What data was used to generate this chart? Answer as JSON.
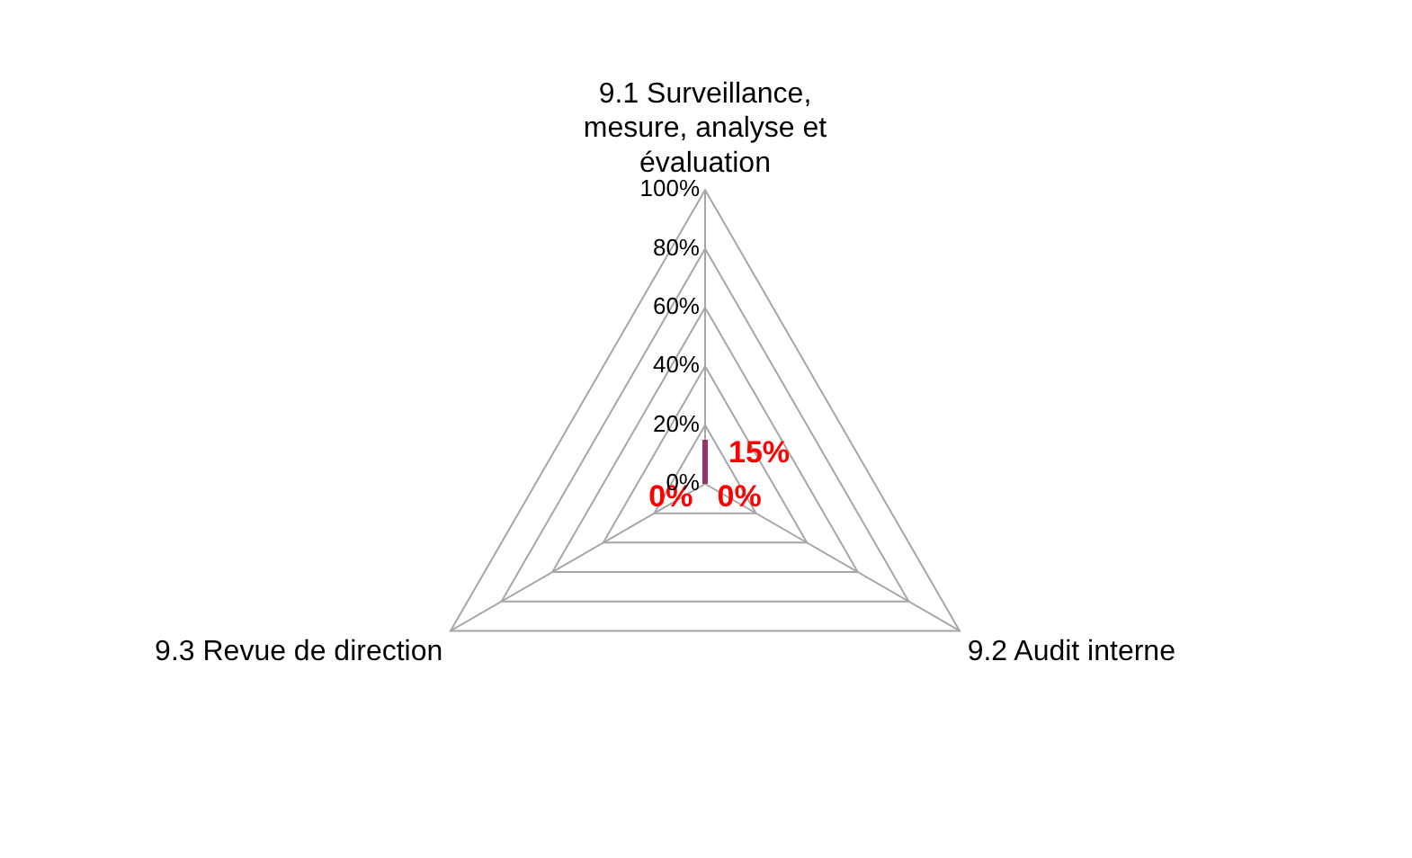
{
  "chart_data": {
    "type": "radar",
    "categories": [
      "9.1 Surveillance, mesure, analyse et évaluation",
      "9.2 Audit interne",
      "9.3 Revue de direction"
    ],
    "series": [
      {
        "color": "#993366",
        "values": [
          15,
          0,
          0
        ],
        "value_labels": [
          "15%",
          "0%",
          "0%"
        ]
      }
    ],
    "ylim": [
      0,
      100
    ],
    "yticks": [
      {
        "value": 0,
        "label": "0%"
      },
      {
        "value": 20,
        "label": "20%"
      },
      {
        "value": 40,
        "label": "40%"
      },
      {
        "value": 60,
        "label": "60%"
      },
      {
        "value": 80,
        "label": "80%"
      },
      {
        "value": 100,
        "label": "100%"
      }
    ],
    "grid": true,
    "legend": false,
    "marker": "none"
  }
}
